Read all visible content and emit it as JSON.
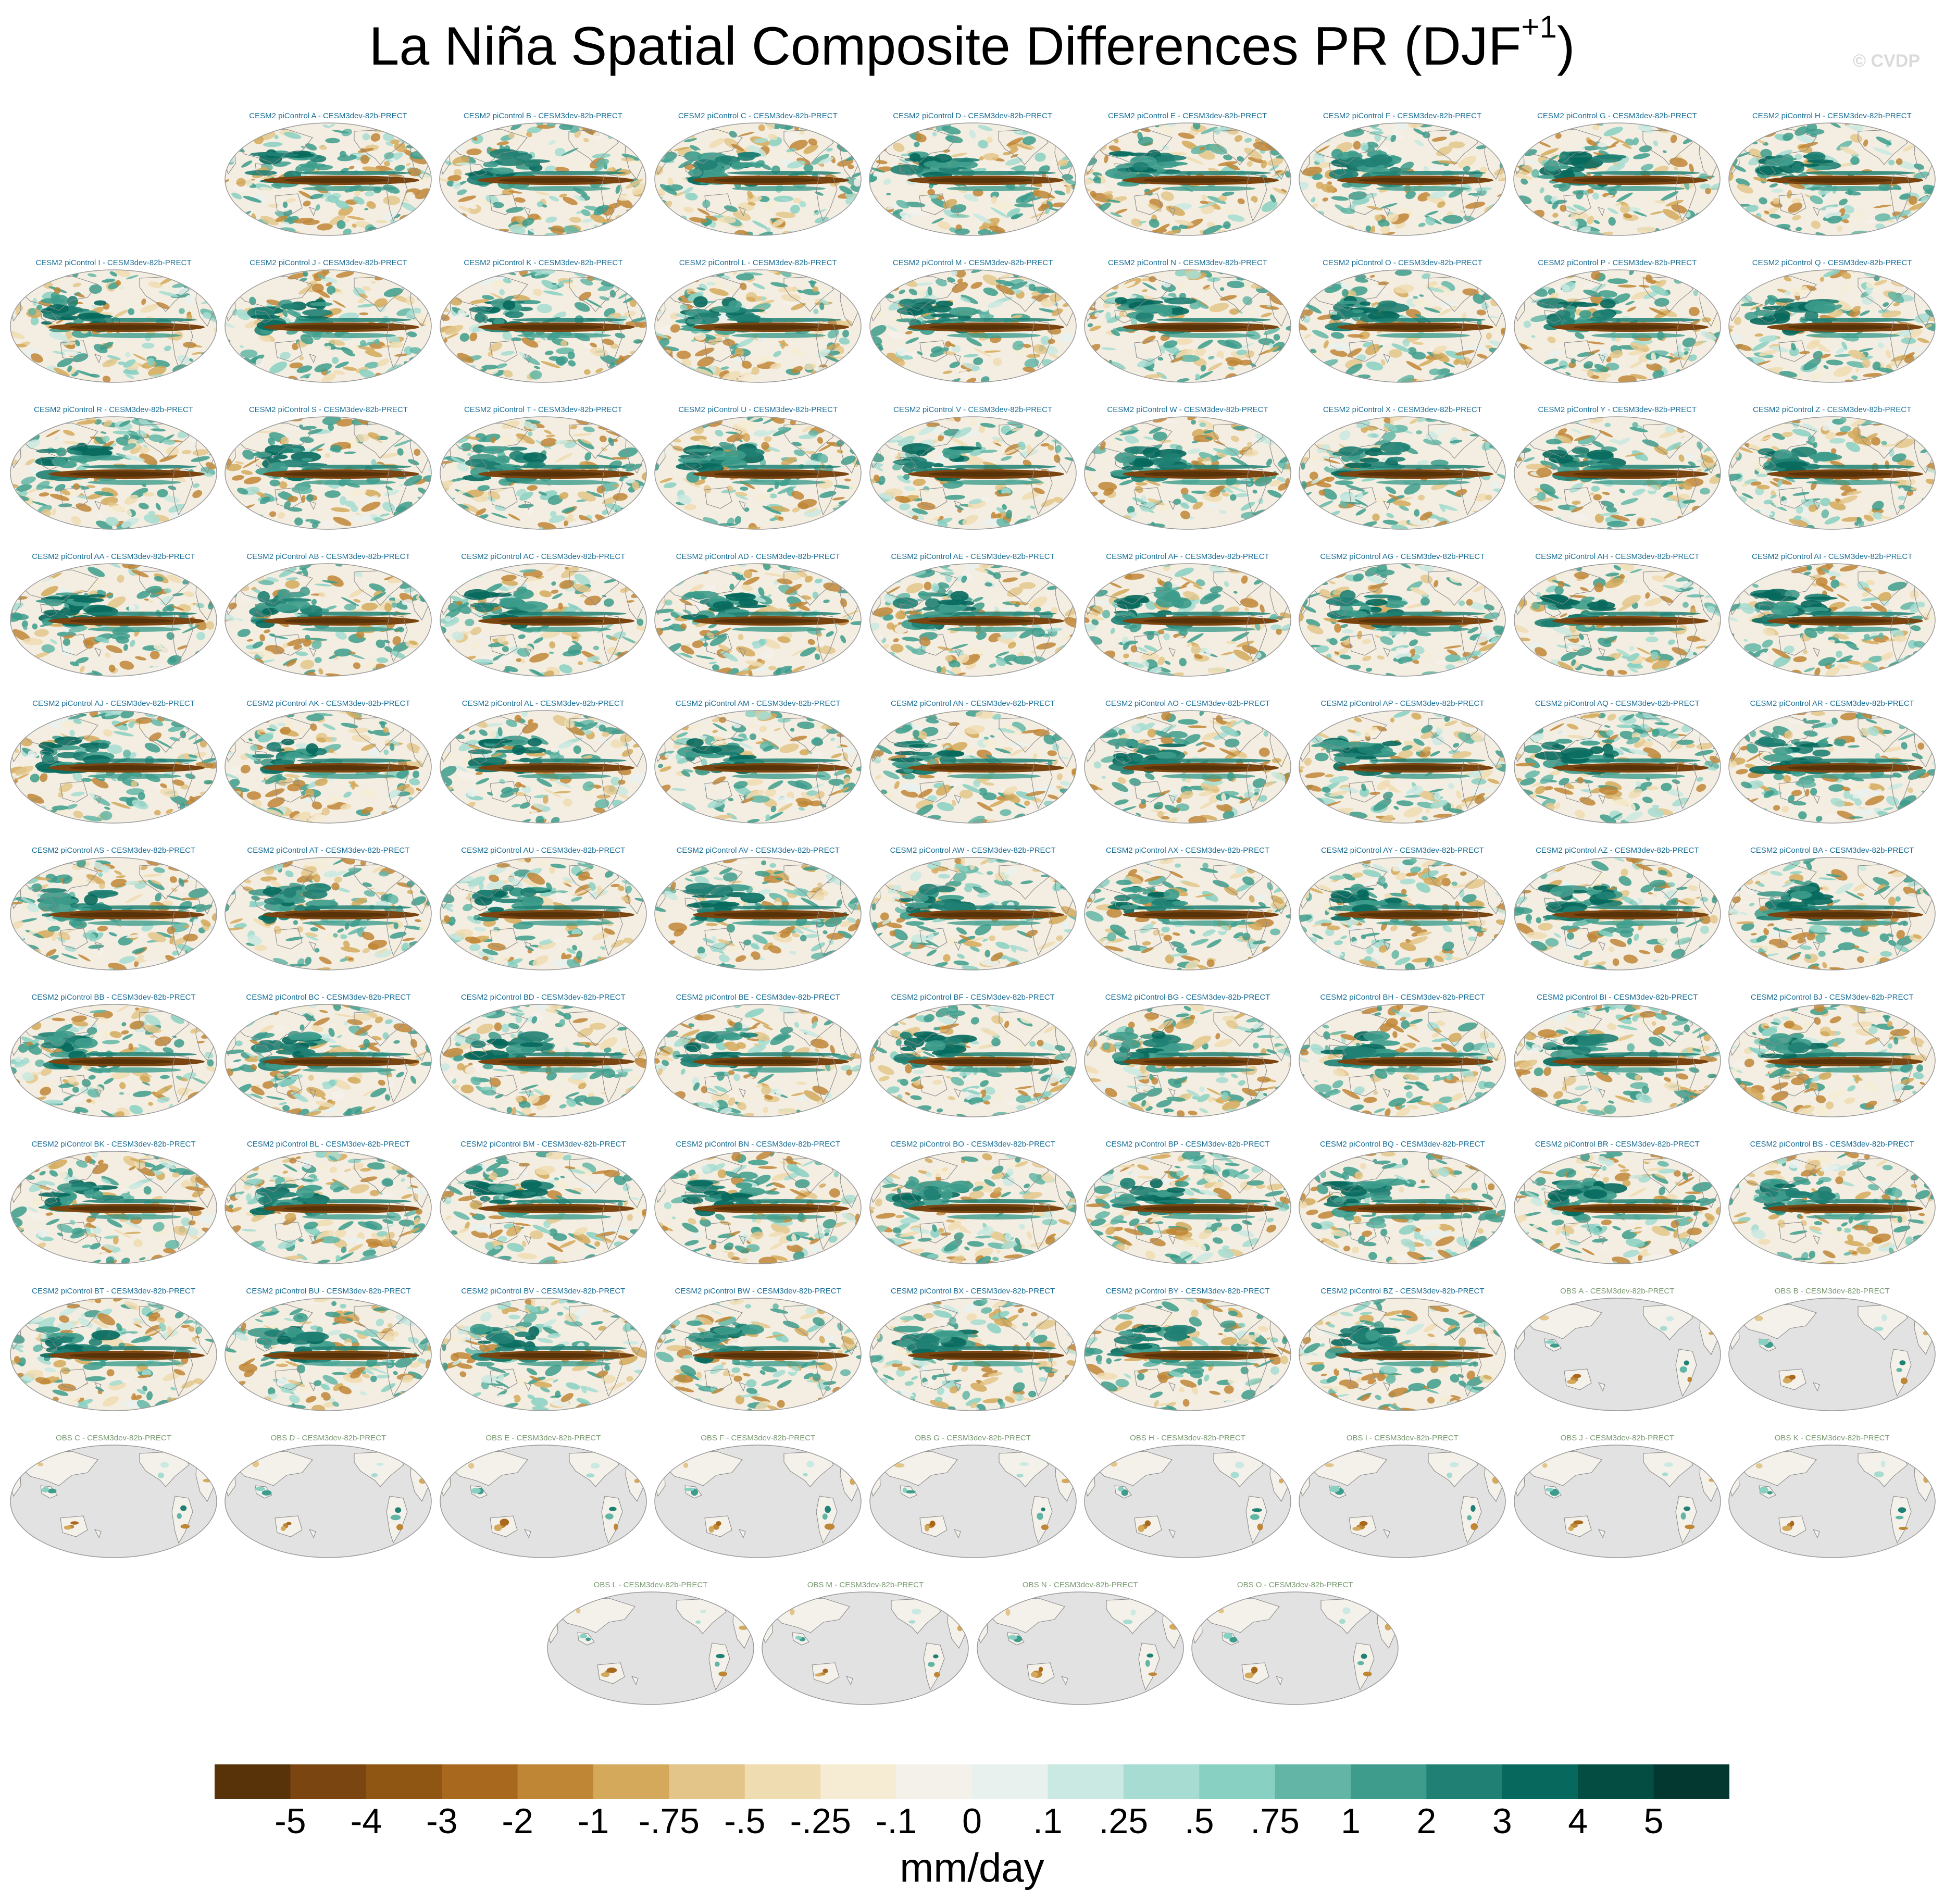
{
  "title": {
    "main": "La Niña Spatial Composite Differences PR (DJF",
    "superscript": "+1",
    "close": ")"
  },
  "copyright": "© CVDP",
  "colors": {
    "model_title": "#1a6e96",
    "obs_title": "#7a9a72",
    "ocean_missing": "#e2e2e2",
    "coast": "#8a8a8a"
  },
  "chart_data": {
    "type": "heatmap",
    "description_title": "La Niña Spatial Composite Differences PR (DJF+1)",
    "panels": [
      {
        "label": "CESM2 piControl A - CESM3dev-82b-PRECT",
        "kind": "model"
      },
      {
        "label": "CESM2 piControl B - CESM3dev-82b-PRECT",
        "kind": "model"
      },
      {
        "label": "CESM2 piControl C - CESM3dev-82b-PRECT",
        "kind": "model"
      },
      {
        "label": "CESM2 piControl D - CESM3dev-82b-PRECT",
        "kind": "model"
      },
      {
        "label": "CESM2 piControl E - CESM3dev-82b-PRECT",
        "kind": "model"
      },
      {
        "label": "CESM2 piControl F - CESM3dev-82b-PRECT",
        "kind": "model"
      },
      {
        "label": "CESM2 piControl G - CESM3dev-82b-PRECT",
        "kind": "model"
      },
      {
        "label": "CESM2 piControl H - CESM3dev-82b-PRECT",
        "kind": "model"
      },
      {
        "label": "CESM2 piControl I - CESM3dev-82b-PRECT",
        "kind": "model"
      },
      {
        "label": "CESM2 piControl J - CESM3dev-82b-PRECT",
        "kind": "model"
      },
      {
        "label": "CESM2 piControl K - CESM3dev-82b-PRECT",
        "kind": "model"
      },
      {
        "label": "CESM2 piControl L - CESM3dev-82b-PRECT",
        "kind": "model"
      },
      {
        "label": "CESM2 piControl M - CESM3dev-82b-PRECT",
        "kind": "model"
      },
      {
        "label": "CESM2 piControl N - CESM3dev-82b-PRECT",
        "kind": "model"
      },
      {
        "label": "CESM2 piControl O - CESM3dev-82b-PRECT",
        "kind": "model"
      },
      {
        "label": "CESM2 piControl P - CESM3dev-82b-PRECT",
        "kind": "model"
      },
      {
        "label": "CESM2 piControl Q - CESM3dev-82b-PRECT",
        "kind": "model"
      },
      {
        "label": "CESM2 piControl R - CESM3dev-82b-PRECT",
        "kind": "model"
      },
      {
        "label": "CESM2 piControl S - CESM3dev-82b-PRECT",
        "kind": "model"
      },
      {
        "label": "CESM2 piControl T - CESM3dev-82b-PRECT",
        "kind": "model"
      },
      {
        "label": "CESM2 piControl U - CESM3dev-82b-PRECT",
        "kind": "model"
      },
      {
        "label": "CESM2 piControl V - CESM3dev-82b-PRECT",
        "kind": "model"
      },
      {
        "label": "CESM2 piControl W - CESM3dev-82b-PRECT",
        "kind": "model"
      },
      {
        "label": "CESM2 piControl X - CESM3dev-82b-PRECT",
        "kind": "model"
      },
      {
        "label": "CESM2 piControl Y - CESM3dev-82b-PRECT",
        "kind": "model"
      },
      {
        "label": "CESM2 piControl Z - CESM3dev-82b-PRECT",
        "kind": "model"
      },
      {
        "label": "CESM2 piControl AA - CESM3dev-82b-PRECT",
        "kind": "model"
      },
      {
        "label": "CESM2 piControl AB - CESM3dev-82b-PRECT",
        "kind": "model"
      },
      {
        "label": "CESM2 piControl AC - CESM3dev-82b-PRECT",
        "kind": "model"
      },
      {
        "label": "CESM2 piControl AD - CESM3dev-82b-PRECT",
        "kind": "model"
      },
      {
        "label": "CESM2 piControl AE - CESM3dev-82b-PRECT",
        "kind": "model"
      },
      {
        "label": "CESM2 piControl AF - CESM3dev-82b-PRECT",
        "kind": "model"
      },
      {
        "label": "CESM2 piControl AG - CESM3dev-82b-PRECT",
        "kind": "model"
      },
      {
        "label": "CESM2 piControl AH - CESM3dev-82b-PRECT",
        "kind": "model"
      },
      {
        "label": "CESM2 piControl AI - CESM3dev-82b-PRECT",
        "kind": "model"
      },
      {
        "label": "CESM2 piControl AJ - CESM3dev-82b-PRECT",
        "kind": "model"
      },
      {
        "label": "CESM2 piControl AK - CESM3dev-82b-PRECT",
        "kind": "model"
      },
      {
        "label": "CESM2 piControl AL - CESM3dev-82b-PRECT",
        "kind": "model"
      },
      {
        "label": "CESM2 piControl AM - CESM3dev-82b-PRECT",
        "kind": "model"
      },
      {
        "label": "CESM2 piControl AN - CESM3dev-82b-PRECT",
        "kind": "model"
      },
      {
        "label": "CESM2 piControl AO - CESM3dev-82b-PRECT",
        "kind": "model"
      },
      {
        "label": "CESM2 piControl AP - CESM3dev-82b-PRECT",
        "kind": "model"
      },
      {
        "label": "CESM2 piControl AQ - CESM3dev-82b-PRECT",
        "kind": "model"
      },
      {
        "label": "CESM2 piControl AR - CESM3dev-82b-PRECT",
        "kind": "model"
      },
      {
        "label": "CESM2 piControl AS - CESM3dev-82b-PRECT",
        "kind": "model"
      },
      {
        "label": "CESM2 piControl AT - CESM3dev-82b-PRECT",
        "kind": "model"
      },
      {
        "label": "CESM2 piControl AU - CESM3dev-82b-PRECT",
        "kind": "model"
      },
      {
        "label": "CESM2 piControl AV - CESM3dev-82b-PRECT",
        "kind": "model"
      },
      {
        "label": "CESM2 piControl AW - CESM3dev-82b-PRECT",
        "kind": "model"
      },
      {
        "label": "CESM2 piControl AX - CESM3dev-82b-PRECT",
        "kind": "model"
      },
      {
        "label": "CESM2 piControl AY - CESM3dev-82b-PRECT",
        "kind": "model"
      },
      {
        "label": "CESM2 piControl AZ - CESM3dev-82b-PRECT",
        "kind": "model"
      },
      {
        "label": "CESM2 piControl BA - CESM3dev-82b-PRECT",
        "kind": "model"
      },
      {
        "label": "CESM2 piControl BB - CESM3dev-82b-PRECT",
        "kind": "model"
      },
      {
        "label": "CESM2 piControl BC - CESM3dev-82b-PRECT",
        "kind": "model"
      },
      {
        "label": "CESM2 piControl BD - CESM3dev-82b-PRECT",
        "kind": "model"
      },
      {
        "label": "CESM2 piControl BE - CESM3dev-82b-PRECT",
        "kind": "model"
      },
      {
        "label": "CESM2 piControl BF - CESM3dev-82b-PRECT",
        "kind": "model"
      },
      {
        "label": "CESM2 piControl BG - CESM3dev-82b-PRECT",
        "kind": "model"
      },
      {
        "label": "CESM2 piControl BH - CESM3dev-82b-PRECT",
        "kind": "model"
      },
      {
        "label": "CESM2 piControl BI - CESM3dev-82b-PRECT",
        "kind": "model"
      },
      {
        "label": "CESM2 piControl BJ - CESM3dev-82b-PRECT",
        "kind": "model"
      },
      {
        "label": "CESM2 piControl BK - CESM3dev-82b-PRECT",
        "kind": "model"
      },
      {
        "label": "CESM2 piControl BL - CESM3dev-82b-PRECT",
        "kind": "model"
      },
      {
        "label": "CESM2 piControl BM - CESM3dev-82b-PRECT",
        "kind": "model"
      },
      {
        "label": "CESM2 piControl BN - CESM3dev-82b-PRECT",
        "kind": "model"
      },
      {
        "label": "CESM2 piControl BO - CESM3dev-82b-PRECT",
        "kind": "model"
      },
      {
        "label": "CESM2 piControl BP - CESM3dev-82b-PRECT",
        "kind": "model"
      },
      {
        "label": "CESM2 piControl BQ - CESM3dev-82b-PRECT",
        "kind": "model"
      },
      {
        "label": "CESM2 piControl BR - CESM3dev-82b-PRECT",
        "kind": "model"
      },
      {
        "label": "CESM2 piControl BS - CESM3dev-82b-PRECT",
        "kind": "model"
      },
      {
        "label": "CESM2 piControl BT - CESM3dev-82b-PRECT",
        "kind": "model"
      },
      {
        "label": "CESM2 piControl BU - CESM3dev-82b-PRECT",
        "kind": "model"
      },
      {
        "label": "CESM2 piControl BV - CESM3dev-82b-PRECT",
        "kind": "model"
      },
      {
        "label": "CESM2 piControl BW - CESM3dev-82b-PRECT",
        "kind": "model"
      },
      {
        "label": "CESM2 piControl BX - CESM3dev-82b-PRECT",
        "kind": "model"
      },
      {
        "label": "CESM2 piControl BY - CESM3dev-82b-PRECT",
        "kind": "model"
      },
      {
        "label": "CESM2 piControl BZ - CESM3dev-82b-PRECT",
        "kind": "model"
      },
      {
        "label": "OBS A - CESM3dev-82b-PRECT",
        "kind": "obs"
      },
      {
        "label": "OBS B - CESM3dev-82b-PRECT",
        "kind": "obs"
      },
      {
        "label": "OBS C - CESM3dev-82b-PRECT",
        "kind": "obs"
      },
      {
        "label": "OBS D - CESM3dev-82b-PRECT",
        "kind": "obs"
      },
      {
        "label": "OBS E - CESM3dev-82b-PRECT",
        "kind": "obs"
      },
      {
        "label": "OBS F - CESM3dev-82b-PRECT",
        "kind": "obs"
      },
      {
        "label": "OBS G - CESM3dev-82b-PRECT",
        "kind": "obs"
      },
      {
        "label": "OBS H - CESM3dev-82b-PRECT",
        "kind": "obs"
      },
      {
        "label": "OBS I - CESM3dev-82b-PRECT",
        "kind": "obs"
      },
      {
        "label": "OBS J - CESM3dev-82b-PRECT",
        "kind": "obs"
      },
      {
        "label": "OBS K - CESM3dev-82b-PRECT",
        "kind": "obs"
      },
      {
        "label": "OBS L - CESM3dev-82b-PRECT",
        "kind": "obs"
      },
      {
        "label": "OBS M - CESM3dev-82b-PRECT",
        "kind": "obs"
      },
      {
        "label": "OBS N - CESM3dev-82b-PRECT",
        "kind": "obs"
      },
      {
        "label": "OBS O - CESM3dev-82b-PRECT",
        "kind": "obs"
      }
    ],
    "colorbar": {
      "levels": [
        "-5",
        "-4",
        "-3",
        "-2",
        "-1",
        "-.75",
        "-.5",
        "-.25",
        "-.1",
        "0",
        ".1",
        ".25",
        ".5",
        ".75",
        "1",
        "2",
        "3",
        "4",
        "5"
      ],
      "colors": [
        "#583209",
        "#7a4510",
        "#8f5513",
        "#a8691f",
        "#bf8636",
        "#d4a95b",
        "#e3c58a",
        "#efdcb1",
        "#f6ecd3",
        "#f4f1eb",
        "#e9f1ee",
        "#c9e9e2",
        "#a6dcd1",
        "#88d0c2",
        "#63b6a6",
        "#3d9c8c",
        "#1f8073",
        "#07695d",
        "#034d42",
        "#02382f"
      ],
      "units": "mm/day"
    }
  }
}
